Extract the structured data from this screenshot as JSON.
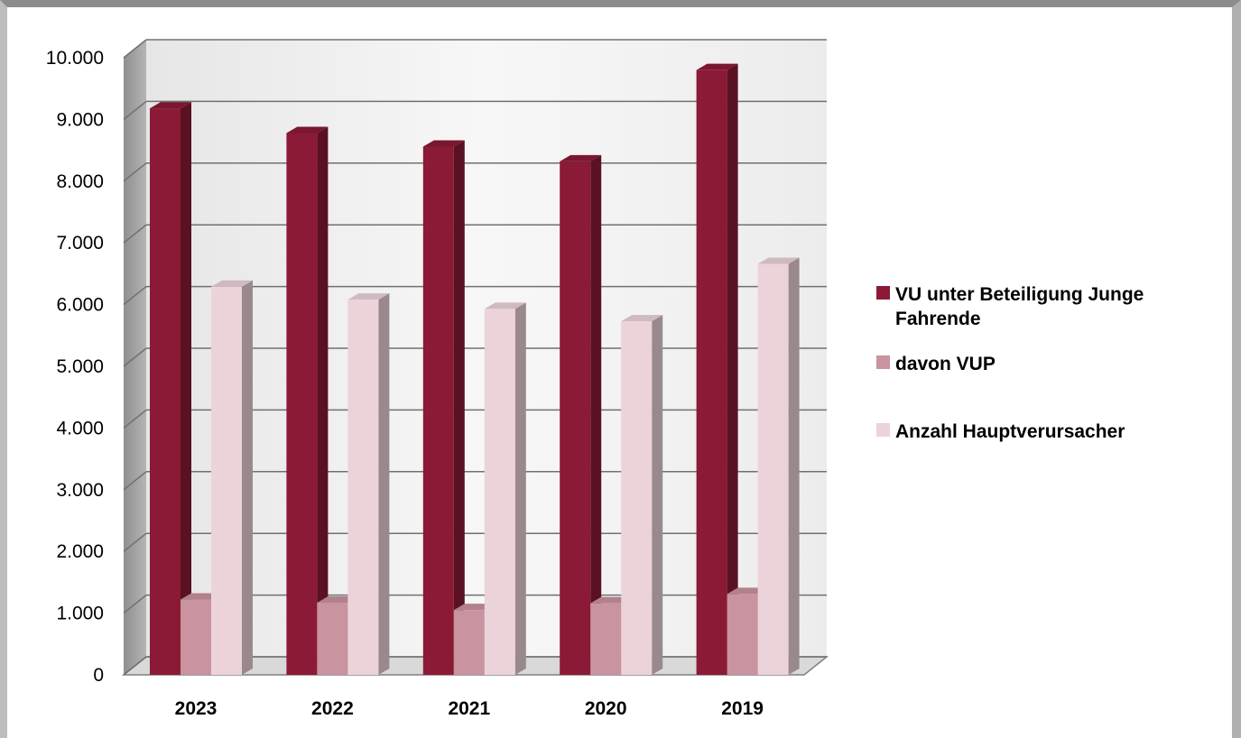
{
  "chart_data": {
    "type": "bar",
    "categories": [
      "2023",
      "2022",
      "2021",
      "2020",
      "2019"
    ],
    "series": [
      {
        "name": "VU unter Beteiligung Junge Fahrende",
        "color": "#8b1a36",
        "values": [
          9180,
          8780,
          8560,
          8320,
          9800
        ]
      },
      {
        "name": "davon VUP",
        "color": "#c9939f",
        "values": [
          1220,
          1170,
          1050,
          1160,
          1310
        ]
      },
      {
        "name": "Anzahl Hauptverursacher",
        "color": "#ebd3d9",
        "values": [
          6290,
          6080,
          5930,
          5730,
          6660
        ]
      }
    ],
    "ylim": [
      0,
      10000
    ],
    "yticks": [
      "0",
      "1.000",
      "2.000",
      "3.000",
      "4.000",
      "5.000",
      "6.000",
      "7.000",
      "8.000",
      "9.000",
      "10.000"
    ],
    "grid": true,
    "legend_position": "right",
    "legend_lines": [
      [
        "VU unter Beteiligung Junge",
        "Fahrende"
      ],
      [
        "davon VUP"
      ],
      [
        "Anzahl Hauptverursacher"
      ]
    ]
  }
}
